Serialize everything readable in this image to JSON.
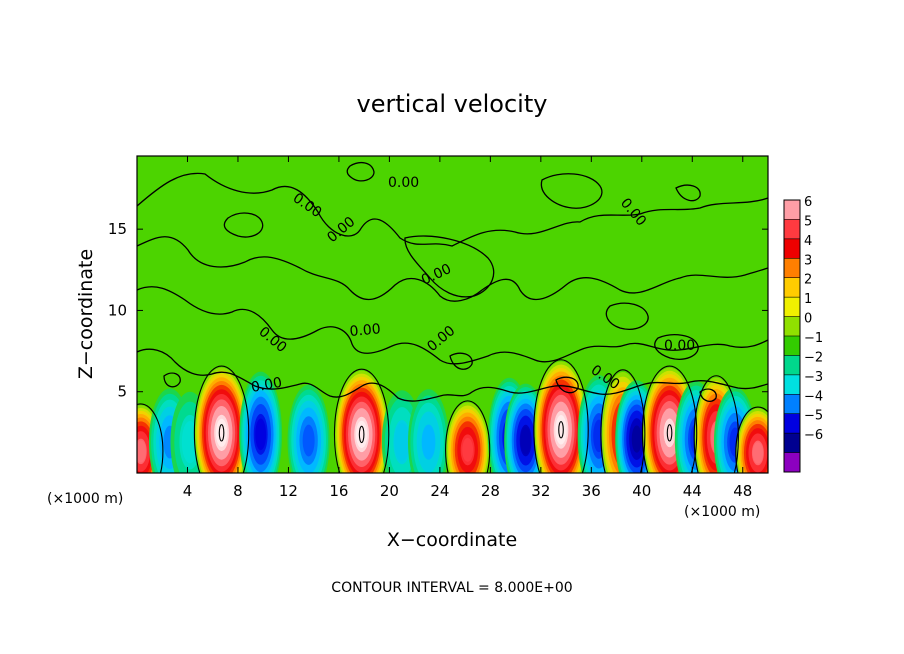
{
  "chart_data": {
    "type": "heatmap",
    "title": "vertical velocity",
    "xlabel": "X−coordinate",
    "ylabel": "Z−coordinate",
    "x_unit_left": "(×1000 m)",
    "x_unit_right": "(×1000 m)",
    "footer": "CONTOUR INTERVAL = 8.000E+00",
    "xlim": [
      0,
      50
    ],
    "ylim": [
      0,
      19.5
    ],
    "x_ticks": [
      "4",
      "8",
      "12",
      "16",
      "20",
      "24",
      "28",
      "32",
      "36",
      "40",
      "44",
      "48"
    ],
    "x_tick_values": [
      4,
      8,
      12,
      16,
      20,
      24,
      28,
      32,
      36,
      40,
      44,
      48
    ],
    "y_ticks": [
      "5",
      "10",
      "15"
    ],
    "y_tick_values": [
      5,
      10,
      15
    ],
    "contour_labels": [
      "0.00",
      "0.00",
      "0.00",
      "0.00",
      "0.00",
      "0.00",
      "0.00",
      "0.00",
      "0.00",
      "0.00",
      "0.00"
    ],
    "colorbar": {
      "labels": [
        "6",
        "5",
        "4",
        "3",
        "2",
        "1",
        "0",
        "−1",
        "−2",
        "−3",
        "−4",
        "−5",
        "−6"
      ],
      "values": [
        6,
        5,
        4,
        3,
        2,
        1,
        0,
        -1,
        -2,
        -3,
        -4,
        -5,
        -6
      ],
      "colors": [
        "#ff9ea6",
        "#ff3a40",
        "#ee0000",
        "#ff7f00",
        "#ffcc00",
        "#f0f000",
        "#90e000",
        "#33cc00",
        "#00d88c",
        "#00e0e0",
        "#0080ff",
        "#0000e0",
        "#000090",
        "#8c00c0"
      ]
    },
    "features": [
      {
        "x": 0.3,
        "z": 1.4,
        "amp": 5.5
      },
      {
        "x": 2.6,
        "z": 2.0,
        "amp": -3.5
      },
      {
        "x": 4.2,
        "z": 2.0,
        "amp": -2.0
      },
      {
        "x": 6.7,
        "z": 2.6,
        "amp": 6.8
      },
      {
        "x": 9.8,
        "z": 2.5,
        "amp": -5.0
      },
      {
        "x": 13.6,
        "z": 2.1,
        "amp": -4.0
      },
      {
        "x": 17.8,
        "z": 2.5,
        "amp": 6.8
      },
      {
        "x": 21.0,
        "z": 2.0,
        "amp": -2.5
      },
      {
        "x": 23.1,
        "z": 2.0,
        "amp": -3.0
      },
      {
        "x": 26.2,
        "z": 1.5,
        "amp": 5.0
      },
      {
        "x": 29.5,
        "z": 2.3,
        "amp": -5.0
      },
      {
        "x": 30.8,
        "z": 2.1,
        "amp": -5.5
      },
      {
        "x": 33.6,
        "z": 2.8,
        "amp": 6.8
      },
      {
        "x": 36.6,
        "z": 2.4,
        "amp": -4.5
      },
      {
        "x": 38.5,
        "z": 2.5,
        "amp": 4.5
      },
      {
        "x": 39.6,
        "z": 2.2,
        "amp": -5.8
      },
      {
        "x": 42.2,
        "z": 2.6,
        "amp": 6.6
      },
      {
        "x": 44.3,
        "z": 2.2,
        "amp": -4.5
      },
      {
        "x": 45.9,
        "z": 2.3,
        "amp": 5.5
      },
      {
        "x": 47.4,
        "z": 2.0,
        "amp": -4.5
      },
      {
        "x": 49.2,
        "z": 1.3,
        "amp": 5.5
      }
    ]
  }
}
